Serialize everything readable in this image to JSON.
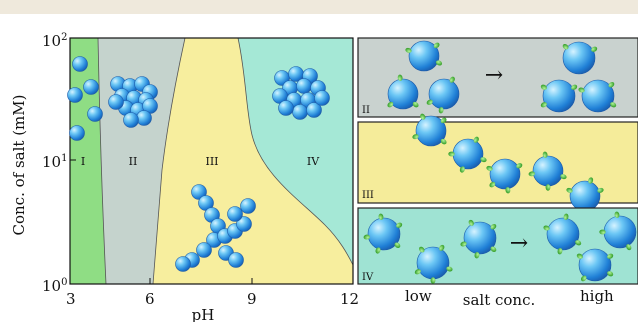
{
  "colors": {
    "page_bg": "#ffffff",
    "top_bar": "#efe9dc",
    "region_I": "#8fdd84",
    "region_II": "#c5d3cd",
    "region_III": "#f7ee9e",
    "region_IV": "#a5e8d6",
    "panel_II_bg": "#c9d2cf",
    "panel_III_bg": "#f5ec9a",
    "panel_IV_bg": "#9fe3d3",
    "particle": "#2a90e0",
    "particle_highlight": "#bfe9ff",
    "ligand": "#3db52b"
  },
  "phase_diagram": {
    "y_axis_label": "Conc. of salt (mM)",
    "x_axis_label": "pH",
    "x_ticks": [
      "3",
      "6",
      "9",
      "12"
    ],
    "y_ticks": [
      {
        "base": "10",
        "exp": "2"
      },
      {
        "base": "10",
        "exp": "1"
      },
      {
        "base": "10",
        "exp": "0"
      }
    ],
    "regions": [
      "I",
      "II",
      "III",
      "IV"
    ]
  },
  "panels": [
    {
      "id": "II",
      "label": "II",
      "arrow": "→"
    },
    {
      "id": "III",
      "label": "III"
    },
    {
      "id": "IV",
      "label": "IV",
      "arrow": "→"
    }
  ],
  "bottom_axis": {
    "low_label": "low",
    "mid_label": "salt conc.",
    "high_label": "high"
  },
  "icons": [
    "nanoparticle-icon",
    "ligand-dot-icon",
    "arrow-right-icon"
  ]
}
